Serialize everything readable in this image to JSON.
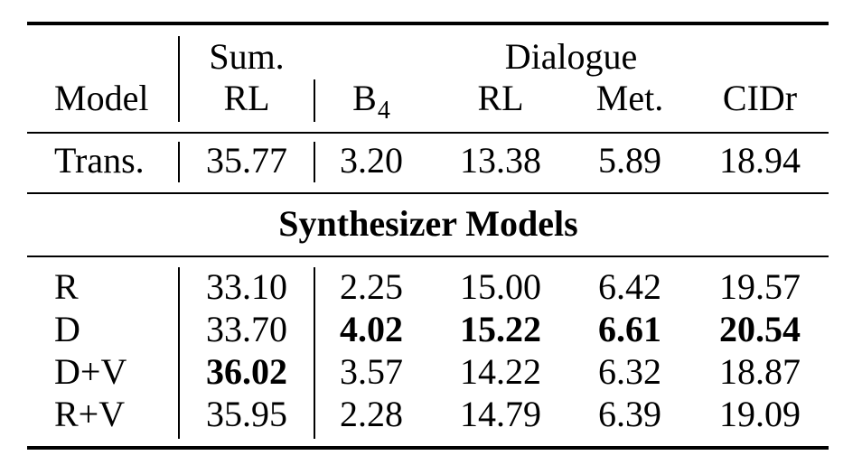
{
  "header": {
    "group_sum": "Sum.",
    "group_dialogue": "Dialogue",
    "model": "Model",
    "sum_rl": "RL",
    "b_main": "B",
    "b_sub": "4",
    "rl": "RL",
    "met": "Met.",
    "cidr": "CIDr"
  },
  "baseline": {
    "model": "Trans.",
    "sum_rl": "35.77",
    "b4": "3.20",
    "rl": "13.38",
    "met": "5.89",
    "cidr": "18.94"
  },
  "section_title": "Synthesizer Models",
  "rows": [
    {
      "model": "R",
      "sum_rl": "33.10",
      "b4": "2.25",
      "rl": "15.00",
      "met": "6.42",
      "cidr": "19.57"
    },
    {
      "model": "D",
      "sum_rl": "33.70",
      "b4": "4.02",
      "rl": "15.22",
      "met": "6.61",
      "cidr": "20.54"
    },
    {
      "model": "D+V",
      "sum_rl": "36.02",
      "b4": "3.57",
      "rl": "14.22",
      "met": "6.32",
      "cidr": "18.87"
    },
    {
      "model": "R+V",
      "sum_rl": "35.95",
      "b4": "2.28",
      "rl": "14.79",
      "met": "6.39",
      "cidr": "19.09"
    }
  ]
}
